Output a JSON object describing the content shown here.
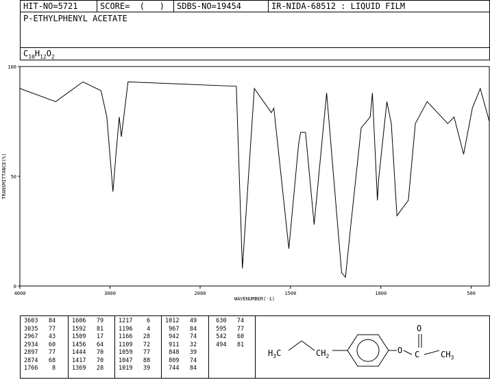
{
  "header": {
    "hit": "HIT-NO=5721",
    "score": "SCORE=  (   )",
    "sdbs": "SDBS-NO=19454",
    "ir": "IR-NIDA-68512 : LIQUID FILM"
  },
  "compound_name": "P-ETHYLPHENYL ACETATE",
  "formula": {
    "c": "C",
    "c_n": "10",
    "h": "H",
    "h_n": "12",
    "o": "O",
    "o_n": "2"
  },
  "chart_data": {
    "type": "line",
    "xlabel": "WAVENUMBER(-1)",
    "ylabel": "TRANSMITTANCE(%)",
    "xlim": [
      4000,
      400
    ],
    "ylim": [
      0,
      100
    ],
    "xticks": [
      4000,
      3000,
      2000,
      1500,
      1000,
      500
    ],
    "yticks": [
      0,
      50,
      100
    ],
    "baseline_points": [
      [
        4000,
        90
      ],
      [
        3603,
        84
      ],
      [
        3300,
        93
      ],
      [
        3100,
        89
      ],
      [
        3035,
        77
      ],
      [
        2967,
        43
      ],
      [
        2934,
        60
      ],
      [
        2897,
        77
      ],
      [
        2874,
        68
      ],
      [
        2800,
        93
      ],
      [
        1800,
        91
      ],
      [
        1766,
        8
      ],
      [
        1700,
        90
      ],
      [
        1606,
        79
      ],
      [
        1592,
        81
      ],
      [
        1509,
        17
      ],
      [
        1456,
        64
      ],
      [
        1444,
        70
      ],
      [
        1417,
        70
      ],
      [
        1369,
        28
      ],
      [
        1300,
        88
      ],
      [
        1217,
        6
      ],
      [
        1196,
        4
      ],
      [
        1166,
        28
      ],
      [
        1109,
        72
      ],
      [
        1059,
        77
      ],
      [
        1047,
        88
      ],
      [
        1019,
        39
      ],
      [
        1012,
        49
      ],
      [
        967,
        84
      ],
      [
        942,
        74
      ],
      [
        911,
        32
      ],
      [
        848,
        39
      ],
      [
        809,
        74
      ],
      [
        744,
        84
      ],
      [
        630,
        74
      ],
      [
        595,
        77
      ],
      [
        542,
        60
      ],
      [
        494,
        81
      ],
      [
        450,
        90
      ],
      [
        400,
        75
      ]
    ],
    "peak_table": [
      [
        [
          "3603",
          "84"
        ],
        [
          "3035",
          "77"
        ],
        [
          "2967",
          "43"
        ],
        [
          "2934",
          "60"
        ],
        [
          "2897",
          "77"
        ],
        [
          "2874",
          "68"
        ],
        [
          "1766",
          "8"
        ]
      ],
      [
        [
          "1606",
          "79"
        ],
        [
          "1592",
          "81"
        ],
        [
          "1509",
          "17"
        ],
        [
          "1456",
          "64"
        ],
        [
          "1444",
          "70"
        ],
        [
          "1417",
          "70"
        ],
        [
          "1369",
          "28"
        ]
      ],
      [
        [
          "1217",
          "6"
        ],
        [
          "1196",
          "4"
        ],
        [
          "1166",
          "28"
        ],
        [
          "1109",
          "72"
        ],
        [
          "1059",
          "77"
        ],
        [
          "1047",
          "88"
        ],
        [
          "1019",
          "39"
        ]
      ],
      [
        [
          "1012",
          "49"
        ],
        [
          "967",
          "84"
        ],
        [
          "942",
          "74"
        ],
        [
          "911",
          "32"
        ],
        [
          "848",
          "39"
        ],
        [
          "809",
          "74"
        ],
        [
          "744",
          "84"
        ]
      ],
      [
        [
          "630",
          "74"
        ],
        [
          "595",
          "77"
        ],
        [
          "542",
          "60"
        ],
        [
          "494",
          "81"
        ]
      ]
    ]
  },
  "structure": {
    "h3c": "H3C",
    "ch2": "CH2",
    "o_ester": "O",
    "c_carbonyl": "C",
    "o_carbonyl": "O",
    "ch3": "CH3"
  }
}
